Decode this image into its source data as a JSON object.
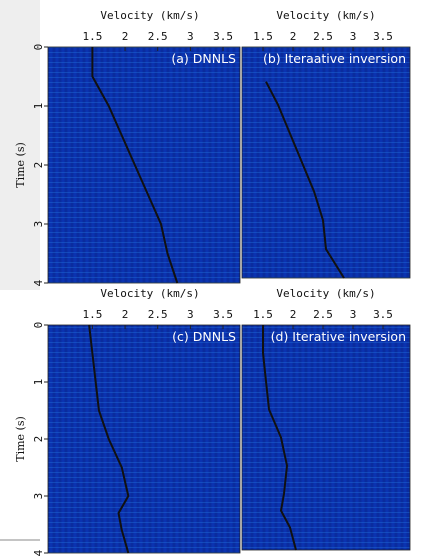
{
  "chart_data": [
    {
      "type": "line",
      "label": "(a) DNNLS",
      "x_label": "Velocity (km/s)",
      "y_label": "Time (s)",
      "xlim": [
        0.82,
        3.76
      ],
      "xticks": [
        1.5,
        2,
        2.5,
        3,
        3.5
      ],
      "ylim": [
        4,
        0
      ],
      "yticks": [
        0,
        1,
        2,
        3,
        4
      ],
      "series": [
        {
          "color": "#111111",
          "x": [
            1.5,
            1.5,
            1.55,
            1.75,
            1.95,
            2.15,
            2.35,
            2.55,
            2.65,
            2.8
          ],
          "values": [
            0,
            0.5,
            0.6,
            1,
            1.5,
            2,
            2.5,
            3,
            3.5,
            4
          ]
        }
      ]
    },
    {
      "type": "line",
      "label": "(b) Iteraative inversion",
      "x_label": "Velocity (km/s)",
      "xlim": [
        1.15,
        3.95
      ],
      "xticks": [
        1.5,
        2,
        2.5,
        3,
        3.5
      ],
      "ylim": [
        4,
        0
      ],
      "series": [
        {
          "color": "#111111",
          "x": [
            1.55,
            1.75,
            1.95,
            2.15,
            2.35,
            2.5,
            2.55,
            2.85
          ],
          "values": [
            0.6,
            1,
            1.5,
            2,
            2.5,
            3,
            3.5,
            4
          ]
        }
      ]
    },
    {
      "type": "line",
      "label": "(c) DNNLS",
      "x_label": "Velocity (km/s)",
      "y_label": "Time (s)",
      "xlim": [
        0.82,
        3.76
      ],
      "xticks": [
        1.5,
        2,
        2.5,
        3,
        3.5
      ],
      "ylim": [
        4,
        0
      ],
      "yticks": [
        0,
        1,
        2,
        3,
        4
      ],
      "series": [
        {
          "color": "#111111",
          "x": [
            1.45,
            1.5,
            1.55,
            1.6,
            1.75,
            1.95,
            2.05,
            1.9,
            1.95,
            2.05
          ],
          "values": [
            0,
            0.5,
            1,
            1.5,
            2,
            2.5,
            3,
            3.3,
            3.6,
            4
          ]
        }
      ]
    },
    {
      "type": "line",
      "label": "(d) Iterative inversion",
      "x_label": "Velocity (km/s)",
      "xlim": [
        1.15,
        3.95
      ],
      "xticks": [
        1.5,
        2,
        2.5,
        3,
        3.5
      ],
      "ylim": [
        4,
        0
      ],
      "series": [
        {
          "color": "#111111",
          "x": [
            1.5,
            1.5,
            1.55,
            1.6,
            1.8,
            1.9,
            1.85,
            1.8,
            1.95,
            2.05
          ],
          "values": [
            0,
            0.5,
            1,
            1.5,
            2,
            2.5,
            3,
            3.3,
            3.6,
            4
          ]
        }
      ]
    }
  ]
}
